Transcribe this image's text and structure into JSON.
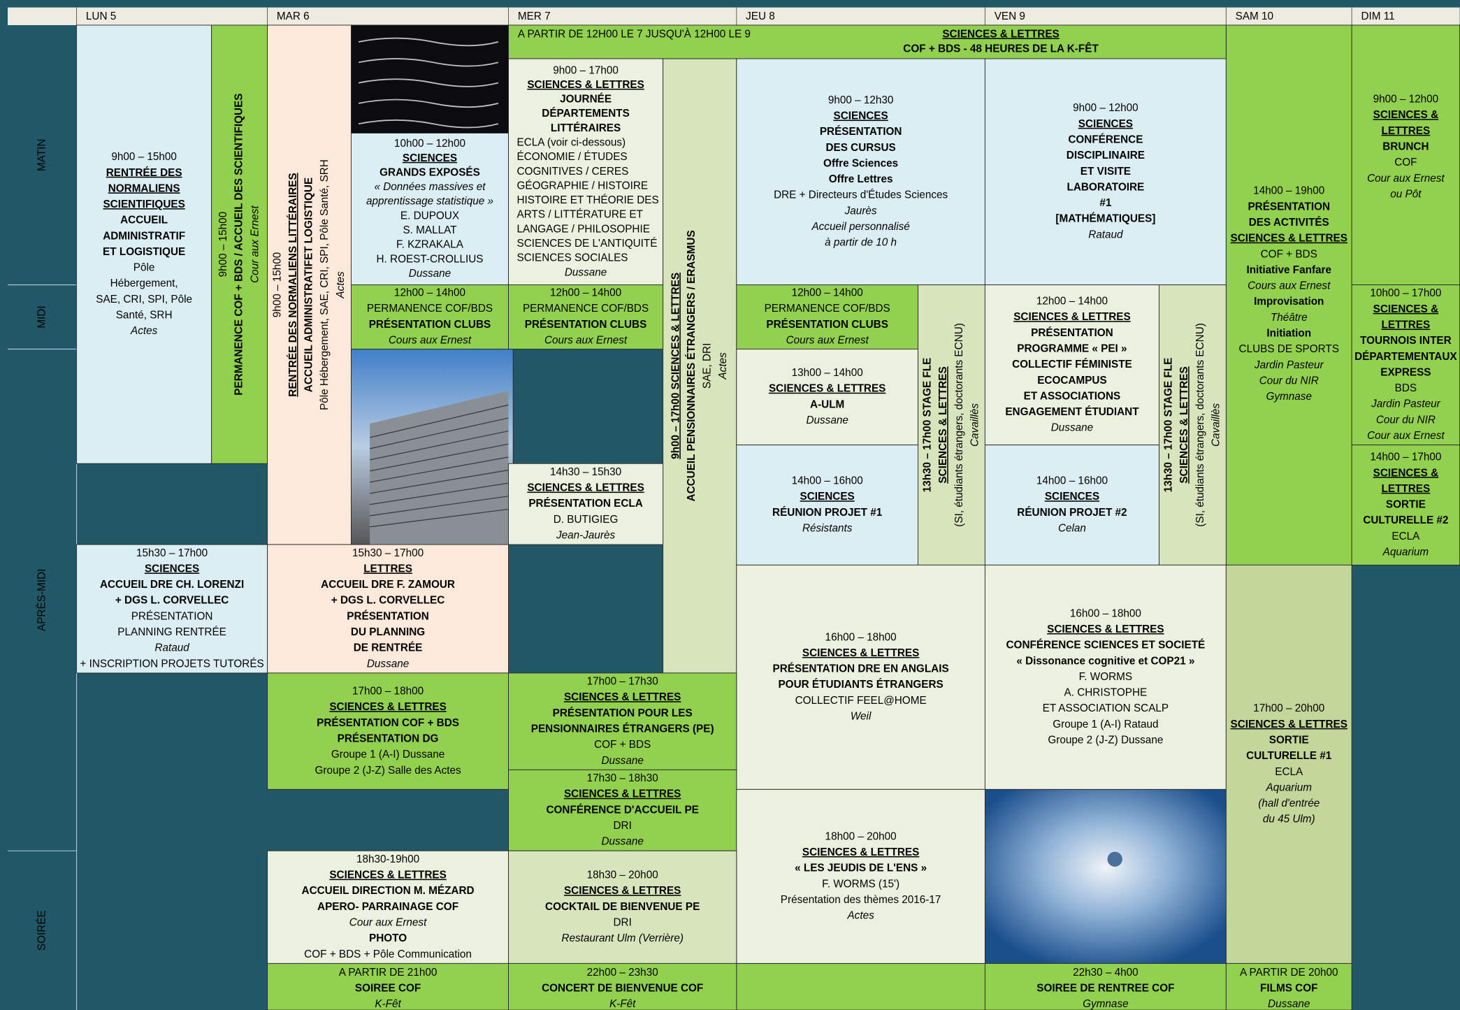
{
  "header": {
    "days": [
      "LUN 5",
      "MAR 6",
      "MER 7",
      "JEU 8",
      "VEN 9",
      "SAM 10",
      "DIM 11"
    ]
  },
  "periods": [
    "MATIN",
    "MIDI",
    "APRÈS-MIDI",
    "SOIRÉE"
  ],
  "banner_note": "A PARTIR DE 12H00 LE 7 JUSQU'À 12H00 LE 9",
  "cells": [
    {
      "lines": [
        "9h00 – 15h00",
        "RENTRÉE DES",
        "NORMALIENS",
        "SCIENTIFIQUES",
        "ACCUEIL",
        "ADMINISTRATIF",
        "ET LOGISTIQUE",
        "Pôle",
        "Hébergement,",
        "SAE, CRI, SPI, Pôle",
        "Santé, SRH",
        "Actes"
      ]
    },
    {
      "lines": [
        "9h00 – 15h00",
        "PERMANENCE COF + BDS / ACCUEIL DES SCIENTIFIQUES",
        "Cour aux Ernest"
      ]
    },
    {
      "lines": [
        "9h00 – 15h00",
        "RENTRÉE DES NORMALIENS LITTÉRAIRES",
        "ACCUEIL ADMINISTRATIFET LOGISTIQUE",
        "Pôle Hébergement, SAE, CRI, SPI, Pôle Santé, SRH",
        "Actes"
      ]
    },
    {
      "lines": [
        "10h00 – 12h00",
        "SCIENCES",
        "GRANDS EXPOSÉS",
        "« Données massives et",
        "apprentissage statistique »",
        "E. DUPOUX",
        "S. MALLAT",
        "F. KZRAKALA",
        "H. ROEST-CROLLIUS",
        "Dussane"
      ]
    },
    {
      "lines": [
        "9h00 – 17h00",
        "SCIENCES & LETTRES",
        "JOURNÉE",
        "DÉPARTEMENTS",
        "LITTÉRAIRES",
        "ECLA (voir ci-dessous)",
        "ÉCONOMIE / ÉTUDES",
        "COGNITIVES / CERES",
        "GÉOGRAPHIE / HISTOIRE",
        "HISTOIRE ET THÉORIE DES",
        "ARTS / LITTÉRATURE ET",
        "LANGAGE / PHILOSOPHIE",
        "SCIENCES  DE L'ANTIQUITÉ",
        "SCIENCES SOCIALES",
        "Dussane"
      ]
    },
    {
      "lines": [
        "9h00 – 17h00  SCIENCES & LETTRES",
        "ACCUEIL PENSIONNAIRES ÉTRANGERS / ERASMUS",
        "SAE, DRI",
        "Actes"
      ]
    },
    {
      "lines": [
        "9h00 – 12h30",
        "SCIENCES",
        "PRÉSENTATION",
        "DES CURSUS",
        "Offre Sciences",
        "Offre Lettres",
        "DRE + Directeurs d'Études Sciences",
        "Jaurès",
        "Accueil personnalisé",
        "à partir de 10 h"
      ]
    },
    {
      "lines": [
        "9h00 – 12h00",
        "SCIENCES",
        "CONFÉRENCE",
        "DISCIPLINAIRE",
        "ET VISITE",
        "LABORATOIRE",
        "#1",
        "[MATHÉMATIQUES]",
        "Rataud"
      ]
    },
    {
      "lines": [
        "14h00 – 19h00",
        "PRÉSENTATION",
        "DES ACTIVITÉS",
        "SCIENCES & LETTRES",
        "COF + BDS",
        "Initiative Fanfare",
        "Cours aux Ernest",
        "Improvisation",
        "Théâtre",
        "Initiation",
        "CLUBS DE SPORTS",
        "Jardin Pasteur",
        "Cour du NIR",
        "Gymnase"
      ]
    },
    {
      "lines": [
        "9h00 – 12h00",
        "SCIENCES &",
        "LETTRES",
        "BRUNCH",
        "COF",
        "Cour aux Ernest",
        "ou Pôt"
      ]
    },
    {
      "lines": [
        "12h00 – 14h00",
        "PERMANENCE COF/BDS",
        "PRÉSENTATION CLUBS",
        "Cours aux Ernest"
      ]
    },
    {
      "lines": [
        "12h00 – 14h00",
        "PERMANENCE COF/BDS",
        "PRÉSENTATION CLUBS",
        "Cours aux Ernest"
      ]
    },
    {
      "lines": [
        "12h00 – 14h00",
        "PERMANENCE COF/BDS",
        "PRÉSENTATION CLUBS",
        "Cours aux Ernest"
      ]
    },
    {
      "lines": [
        "13h00 – 14h00",
        "SCIENCES & LETTRES",
        "A-ULM",
        "Dussane"
      ]
    },
    {
      "lines": [
        "13h30 – 17h00  STAGE FLE",
        "SCIENCES & LETTRES",
        "(SI, étudiants étrangers, doctorants ECNU)",
        "Cavaillès"
      ]
    },
    {
      "lines": [
        "12h00 – 14h00",
        "SCIENCES & LETTRES",
        "PRÉSENTATION",
        "PROGRAMME « PEI »",
        "COLLECTIF FÉMINISTE",
        "ECOCAMPUS",
        "ET ASSOCIATIONS",
        "ENGAGEMENT ÉTUDIANT",
        "Dussane"
      ]
    },
    {
      "lines": [
        "13h30 – 17h00  STAGE FLE",
        "SCIENCES & LETTRES",
        "(SI, étudiants étrangers, doctorants ECNU)",
        "Cavaillès"
      ]
    },
    {
      "lines": [
        "10h00 – 17h00",
        "SCIENCES &",
        "LETTRES",
        "TOURNOIS  INTER",
        "DÉPARTEMENTAUX",
        "EXPRESS",
        "BDS",
        "Jardin Pasteur",
        "Cour du NIR",
        "Cour aux Ernest"
      ]
    },
    {
      "lines": [
        "14h00 – 17h00",
        "SCIENCES &",
        "LETTRES",
        "SORTIE",
        "CULTURELLE #2",
        "ECLA",
        "Aquarium"
      ]
    },
    {
      "lines": [
        "14h00 – 16h00",
        "SCIENCES",
        "RÉUNION PROJET #1",
        "Résistants"
      ]
    },
    {
      "lines": [
        "14h00 – 16h00",
        "SCIENCES",
        "RÉUNION PROJET #2",
        "Celan"
      ]
    },
    {
      "lines": [
        "14h30 – 15h30",
        "SCIENCES & LETTRES",
        "PRÉSENTATION ECLA",
        "D. BUTIGIEG",
        "Jean-Jaurès"
      ]
    },
    {
      "lines": [
        "15h30 – 17h00",
        "SCIENCES",
        "ACCUEIL DRE CH. LORENZI",
        "+ DGS L. CORVELLEC",
        "PRÉSENTATION",
        "PLANNING RENTRÉE",
        "Rataud",
        "+ INSCRIPTION PROJETS TUTORÉS"
      ]
    },
    {
      "lines": [
        "15h30 – 17h00",
        "LETTRES",
        "ACCUEIL DRE F. ZAMOUR",
        "+ DGS L. CORVELLEC",
        "PRÉSENTATION",
        "DU PLANNING",
        "DE RENTRÉE",
        "Dussane"
      ]
    },
    {
      "lines": [
        "16h00 – 18h00",
        "SCIENCES & LETTRES",
        "PRÉSENTATION DRE EN ANGLAIS",
        "POUR ÉTUDIANTS ÉTRANGERS",
        "COLLECTIF FEEL@HOME",
        "Weil"
      ]
    },
    {
      "lines": [
        "16h00 – 18h00",
        "SCIENCES & LETTRES",
        "CONFÉRENCE SCIENCES ET SOCIETÉ",
        "« Dissonance cognitive et COP21 »",
        "F. WORMS",
        "A. CHRISTOPHE",
        "ET ASSOCIATION SCALP",
        "Groupe 1 (A-I) Rataud",
        "Groupe 2 (J-Z) Dussane"
      ]
    },
    {
      "lines": [
        "17h00 – 20h00",
        "SCIENCES & LETTRES",
        "SORTIE",
        "CULTURELLE #1",
        "ECLA",
        "Aquarium",
        "(hall d'entrée",
        "du 45 Ulm)"
      ]
    },
    {
      "lines": [
        "17h00 – 18h00",
        "SCIENCES & LETTRES",
        "PRÉSENTATION COF + BDS",
        "PRÉSENTATION DG",
        "Groupe 1 (A-I) Dussane",
        "Groupe 2 (J-Z) Salle des Actes"
      ]
    },
    {
      "lines": [
        "17h00 – 17h30",
        "SCIENCES & LETTRES",
        "PRÉSENTATION POUR LES",
        "PENSIONNAIRES ÉTRANGERS (PE)",
        "COF + BDS",
        "Dussane"
      ]
    },
    {
      "lines": [
        "17h30 – 18h30",
        "SCIENCES & LETTRES",
        "CONFÉRENCE D'ACCUEIL PE",
        "DRI",
        "Dussane"
      ]
    },
    {
      "lines": [
        "18h00 – 20h00",
        "SCIENCES & LETTRES",
        "« LES JEUDIS DE L'ENS »",
        "F. WORMS (15')",
        "Présentation des thèmes 2016-17",
        "Actes"
      ]
    },
    {
      "lines": [
        "18h30-19h00",
        "SCIENCES & LETTRES",
        "ACCUEIL DIRECTION M. MÉZARD",
        "APERO- PARRAINAGE COF",
        "Cour aux Ernest",
        "PHOTO",
        "COF + BDS + Pôle Communication"
      ]
    },
    {
      "lines": [
        "18h30 – 20h00",
        "SCIENCES & LETTRES",
        "COCKTAIL DE BIENVENUE PE",
        "DRI",
        "Restaurant Ulm (Verrière)"
      ]
    },
    {
      "lines": [
        "A PARTIR DE 21h00",
        "SOIREE COF",
        "K-Fêt"
      ]
    },
    {
      "lines": [
        "22h00 – 23h30",
        "CONCERT DE BIENVENUE COF",
        "K-Fêt"
      ]
    },
    {
      "lines": [
        "22h30 – 4h00",
        "SOIREE DE RENTREE COF",
        "Gymnase"
      ]
    },
    {
      "lines": [
        "A PARTIR DE 20h00",
        "FILMS COF",
        "Dussane"
      ]
    },
    {
      "lines": [
        "SCIENCES & LETTRES",
        "COF + BDS - 48 HEURES DE LA K-FÊT"
      ]
    }
  ]
}
